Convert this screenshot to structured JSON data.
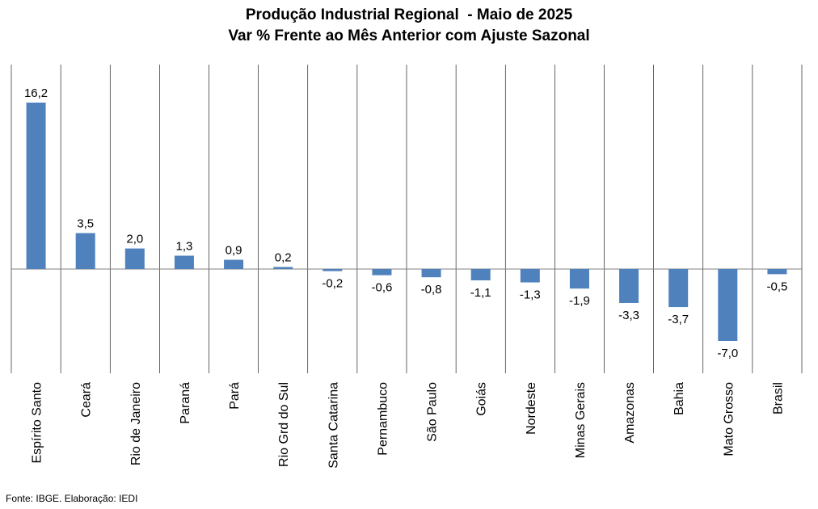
{
  "chart_data": {
    "type": "bar",
    "title": "Produção Industrial Regional  - Maio de 2025",
    "subtitle": "Var % Frente ao Mês Anterior com Ajuste Sazonal",
    "categories": [
      "Espírito Santo",
      "Ceará",
      "Rio de Janeiro",
      "Paraná",
      "Pará",
      "Rio Grd do Sul",
      "Santa Catarina",
      "Pernambuco",
      "São Paulo",
      "Goiás",
      "Nordeste",
      "Minas Gerais",
      "Amazonas",
      "Bahia",
      "Mato Grosso",
      "Brasil"
    ],
    "values": [
      16.2,
      3.5,
      2.0,
      1.3,
      0.9,
      0.2,
      -0.2,
      -0.6,
      -0.8,
      -1.1,
      -1.3,
      -1.9,
      -3.3,
      -3.7,
      -7.0,
      -0.5
    ],
    "data_labels": [
      "16,2",
      "3,5",
      "2,0",
      "1,3",
      "0,9",
      "0,2",
      "-0,2",
      "-0,6",
      "-0,8",
      "-1,1",
      "-1,3",
      "-1,9",
      "-3,3",
      "-3,7",
      "-7,0",
      "-0,5"
    ],
    "bar_color": "#4f81bd",
    "ylim": [
      -10,
      20
    ],
    "grid": "vertical category separators",
    "legend": "none",
    "xlabel": "",
    "ylabel": ""
  },
  "source_note": "Fonte: IBGE. Elaboração: IEDI"
}
